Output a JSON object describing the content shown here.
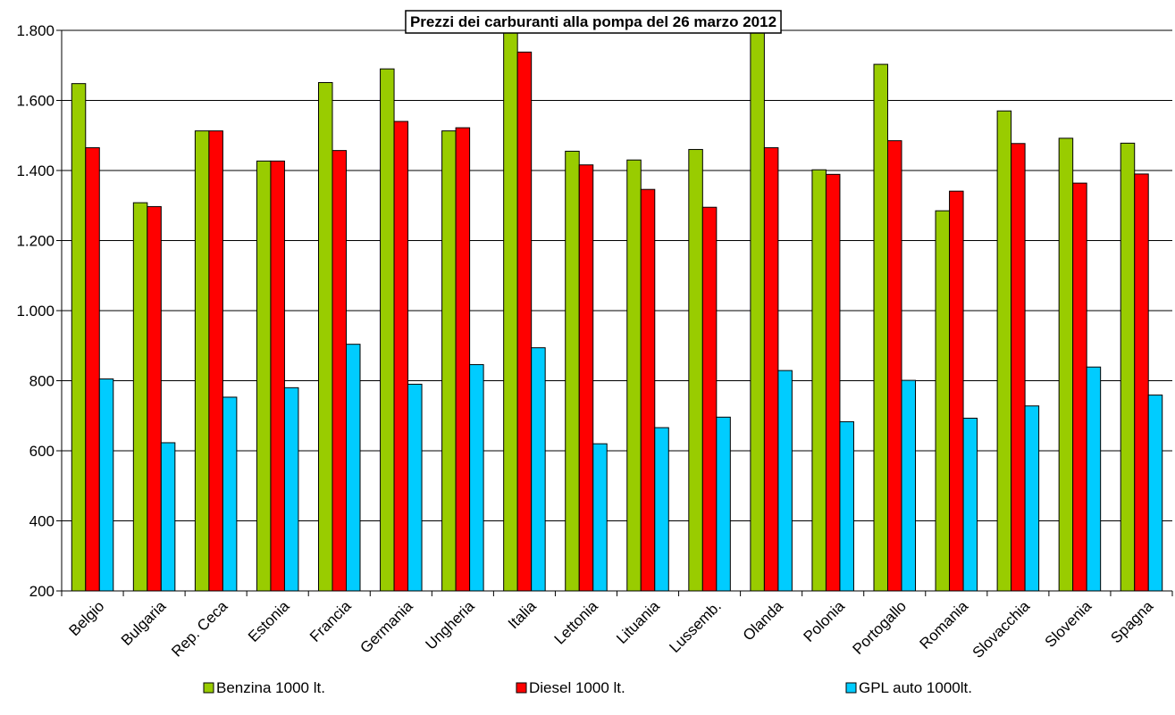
{
  "chart_data": {
    "type": "bar",
    "title": "Prezzi dei carburanti alla pompa del 26 marzo 2012",
    "xlabel": "",
    "ylabel": "",
    "ylim": [
      200,
      1800
    ],
    "yticks": [
      200,
      400,
      600,
      800,
      1000,
      1200,
      1400,
      1600,
      1800
    ],
    "ytick_labels": [
      "200",
      "400",
      "600",
      "800",
      "1.000",
      "1.200",
      "1.400",
      "1.600",
      "1.800"
    ],
    "grid": true,
    "legend_position": "bottom",
    "categories": [
      "Belgio",
      "Bulgaria",
      "Rep. Ceca",
      "Estonia",
      "Francia",
      "Germania",
      "Ungheria",
      "Italia",
      "Lettonia",
      "Lituania",
      "Lussemb.",
      "Olanda",
      "Polonia",
      "Portogallo",
      "Romania",
      "Slovacchia",
      "Slovenia",
      "Spagna"
    ],
    "series": [
      {
        "name": "Benzina 1000 lt.",
        "color": "#99CC00",
        "values": [
          1648,
          1308,
          1513,
          1427,
          1651,
          1690,
          1513,
          1810,
          1455,
          1430,
          1460,
          1800,
          1402,
          1703,
          1285,
          1570,
          1492,
          1478
        ]
      },
      {
        "name": "Diesel 1000 lt.",
        "color": "#FF0000",
        "values": [
          1465,
          1297,
          1513,
          1427,
          1457,
          1540,
          1522,
          1738,
          1416,
          1346,
          1295,
          1465,
          1389,
          1485,
          1341,
          1477,
          1364,
          1390
        ]
      },
      {
        "name": "GPL auto 1000lt.",
        "color": "#00CCFF",
        "values": [
          805,
          623,
          753,
          780,
          904,
          790,
          846,
          894,
          620,
          666,
          696,
          829,
          683,
          801,
          693,
          728,
          839,
          759
        ]
      }
    ]
  }
}
